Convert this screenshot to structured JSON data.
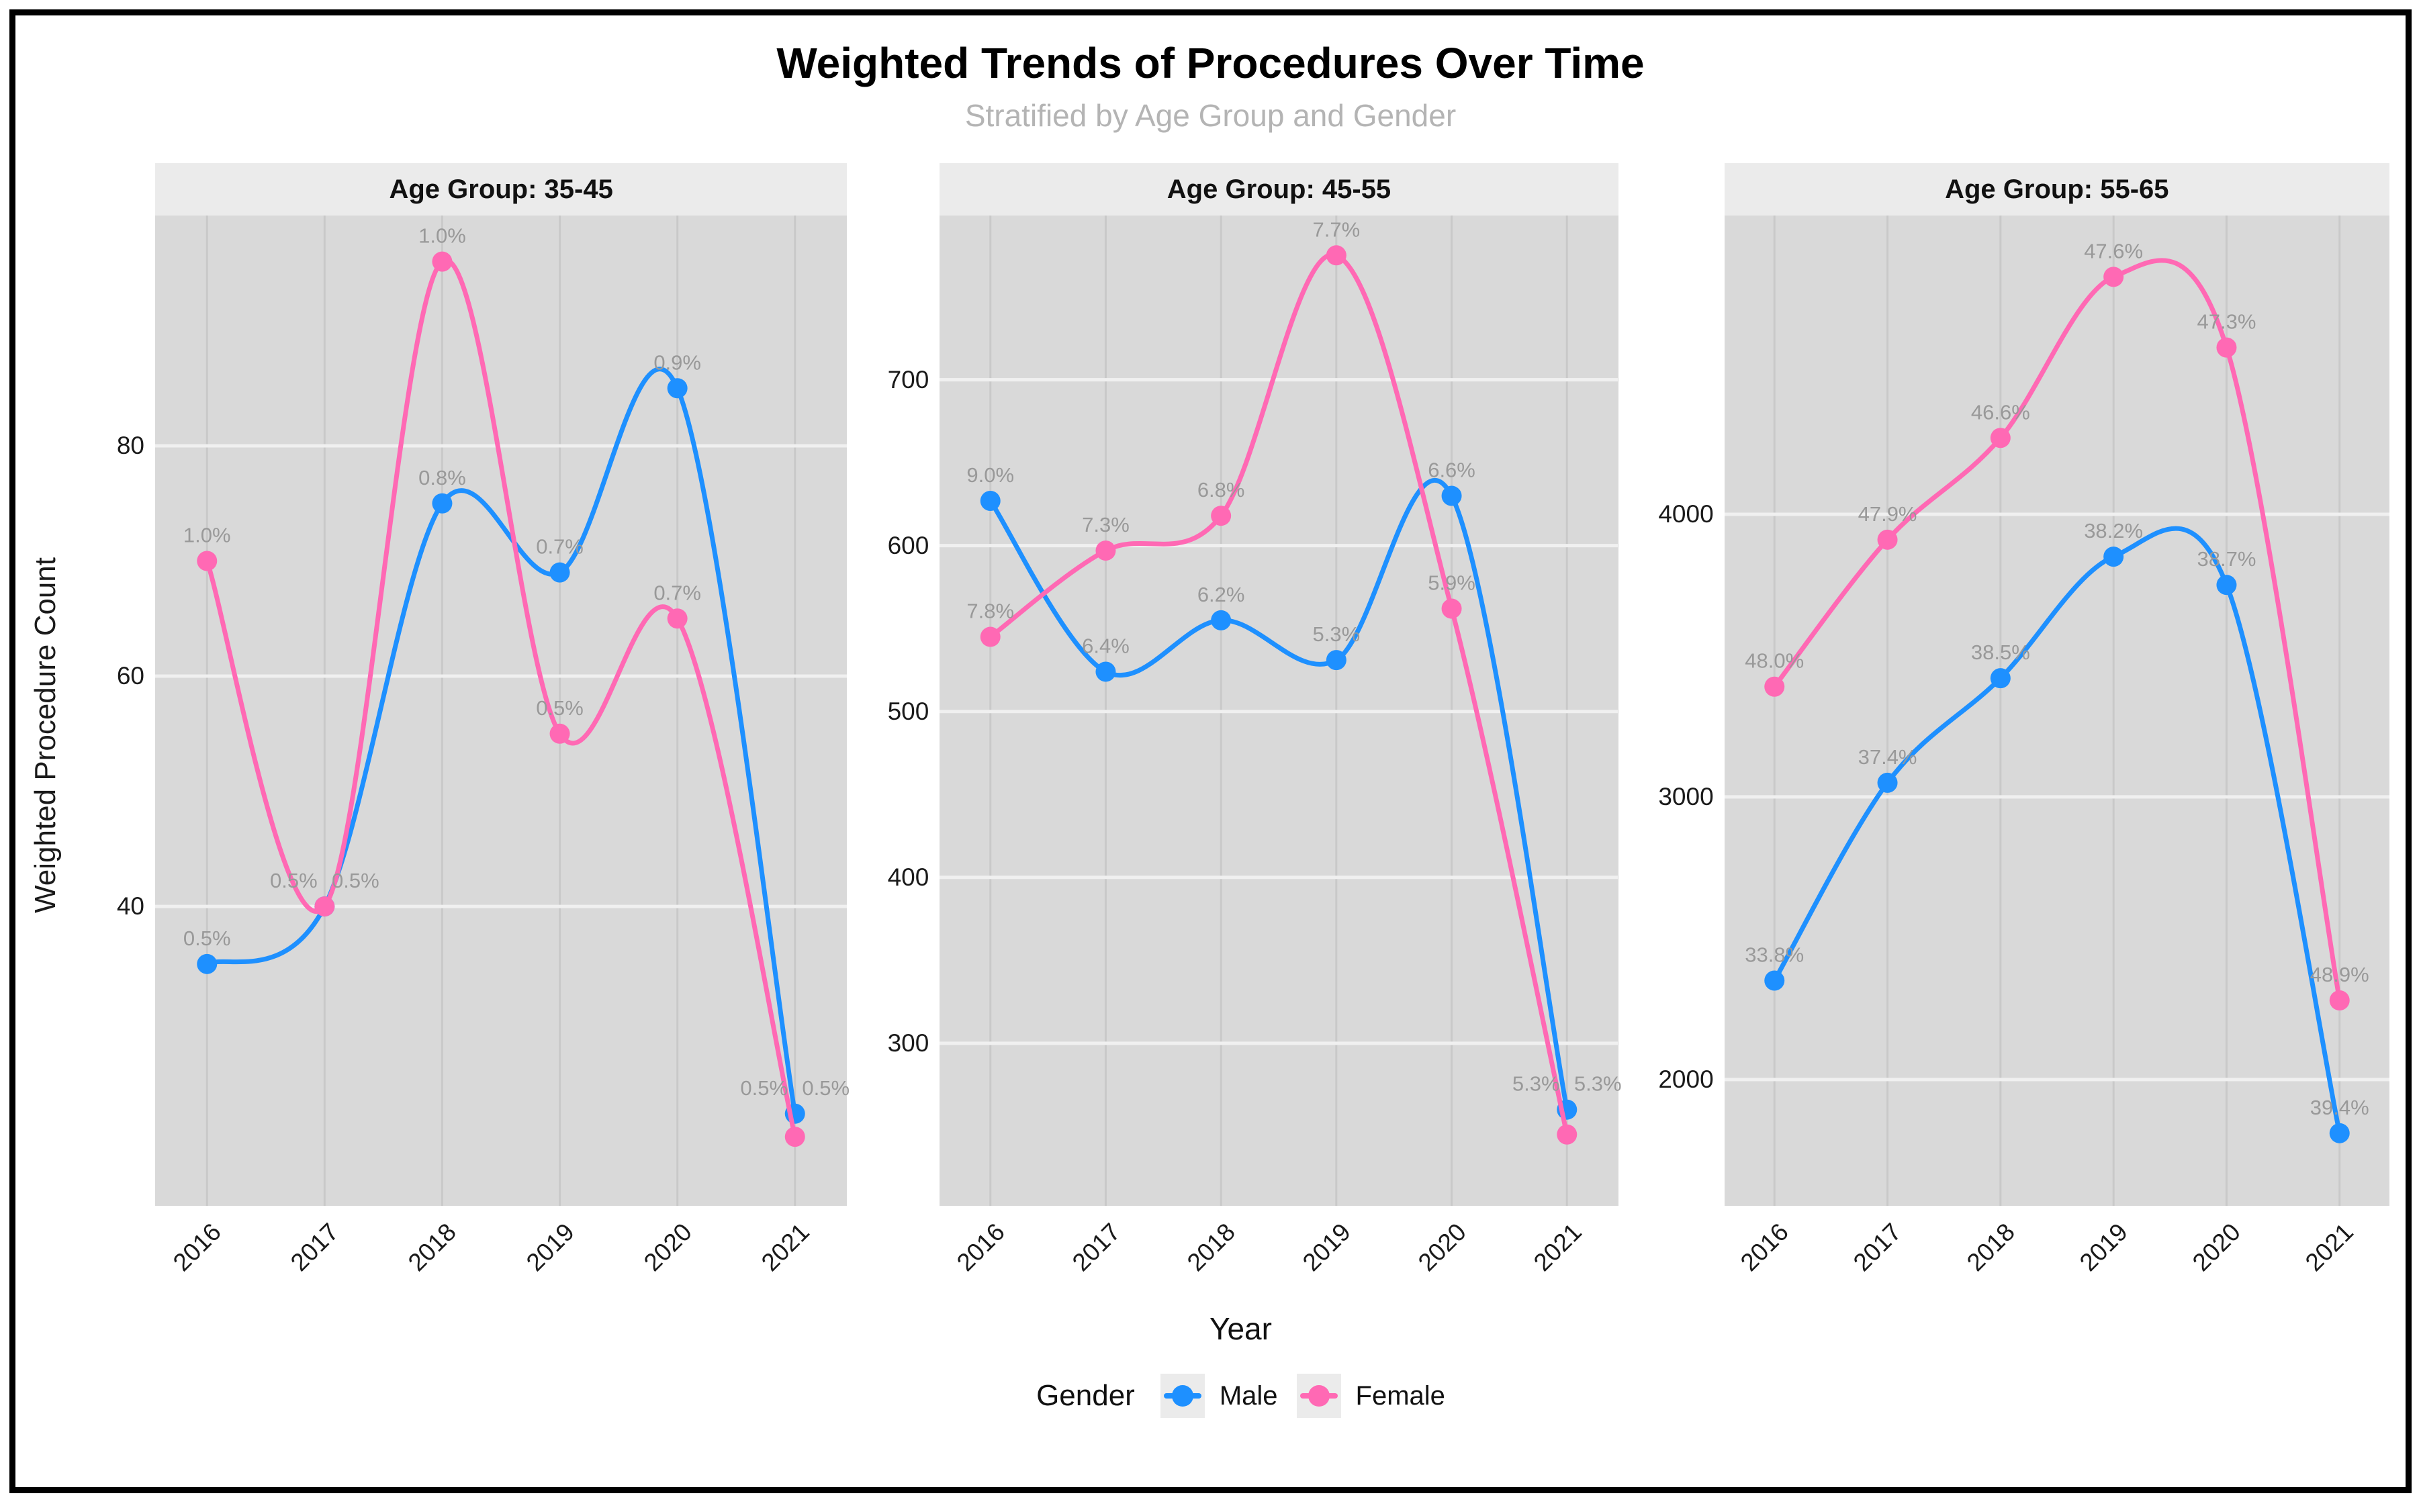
{
  "title": "Weighted Trends of Procedures Over Time",
  "subtitle": "Stratified by Age Group and Gender",
  "axes": {
    "x_title": "Year",
    "y_title": "Weighted Procedure Count"
  },
  "legend": {
    "title": "Gender",
    "items": [
      {
        "label": "Male",
        "color": "#1E90FF"
      },
      {
        "label": "Female",
        "color": "#FF69B4"
      }
    ]
  },
  "style": {
    "panel_background": "#d9d9d9",
    "strip_background": "#ebebeb",
    "grid_major_horizontal": "#f0f0f0",
    "grid_major_vertical": "#c9c9c9",
    "data_label_color": "#999999",
    "subtitle_color": "#b4b4b4"
  },
  "chart_data": [
    {
      "type": "line",
      "facet": "Age Group: 35-45",
      "x": [
        "2016",
        "2017",
        "2018",
        "2019",
        "2020",
        "2021"
      ],
      "ylim": [
        14,
        100
      ],
      "yticks": [
        40,
        60,
        80
      ],
      "grid": true,
      "series": [
        {
          "name": "Male",
          "color": "#1E90FF",
          "values": [
            35,
            40,
            75,
            69,
            85,
            22
          ],
          "labels": [
            "0.5%",
            "0.5%",
            "0.8%",
            "0.7%",
            "0.9%",
            "0.5%"
          ]
        },
        {
          "name": "Female",
          "color": "#FF69B4",
          "values": [
            70,
            40,
            96,
            55,
            65,
            20
          ],
          "labels": [
            "1.0%",
            "0.5%",
            "1.0%",
            "0.5%",
            "0.7%",
            "0.5%"
          ]
        }
      ]
    },
    {
      "type": "line",
      "facet": "Age Group: 45-55",
      "x": [
        "2016",
        "2017",
        "2018",
        "2019",
        "2020",
        "2021"
      ],
      "ylim": [
        202,
        799
      ],
      "yticks": [
        300,
        400,
        500,
        600,
        700
      ],
      "grid": true,
      "series": [
        {
          "name": "Male",
          "color": "#1E90FF",
          "values": [
            627,
            524,
            555,
            531,
            630,
            260
          ],
          "labels": [
            "9.0%",
            "6.4%",
            "6.2%",
            "5.3%",
            "6.6%",
            "5.3%"
          ]
        },
        {
          "name": "Female",
          "color": "#FF69B4",
          "values": [
            545,
            597,
            618,
            775,
            562,
            245
          ],
          "labels": [
            "7.8%",
            "7.3%",
            "6.8%",
            "7.7%",
            "5.9%",
            "5.3%"
          ]
        }
      ]
    },
    {
      "type": "line",
      "facet": "Age Group: 55-65",
      "x": [
        "2016",
        "2017",
        "2018",
        "2019",
        "2020",
        "2021"
      ],
      "ylim": [
        1553,
        5057
      ],
      "yticks": [
        2000,
        3000,
        4000
      ],
      "grid": true,
      "series": [
        {
          "name": "Male",
          "color": "#1E90FF",
          "values": [
            2350,
            3050,
            3420,
            3850,
            3750,
            1810
          ],
          "labels": [
            "33.8%",
            "37.4%",
            "38.5%",
            "38.2%",
            "38.7%",
            "39.4%"
          ]
        },
        {
          "name": "Female",
          "color": "#FF69B4",
          "values": [
            3390,
            3910,
            4270,
            4840,
            4590,
            2280
          ],
          "labels": [
            "48.0%",
            "47.9%",
            "46.6%",
            "47.6%",
            "47.3%",
            "48.9%"
          ]
        }
      ]
    }
  ]
}
